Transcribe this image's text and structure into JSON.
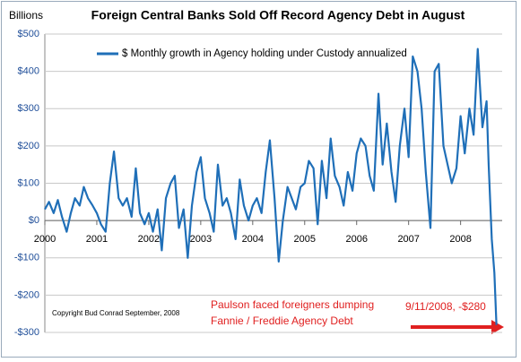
{
  "chart_data": {
    "type": "line",
    "title": "Foreign Central Banks Sold Off  Record Agency Debt in August",
    "y_label": "Billions",
    "x": [
      2000.0,
      2000.08,
      2000.17,
      2000.25,
      2000.33,
      2000.42,
      2000.5,
      2000.58,
      2000.67,
      2000.75,
      2000.83,
      2000.92,
      2001.0,
      2001.08,
      2001.17,
      2001.25,
      2001.33,
      2001.42,
      2001.5,
      2001.58,
      2001.67,
      2001.75,
      2001.83,
      2001.92,
      2002.0,
      2002.08,
      2002.17,
      2002.25,
      2002.33,
      2002.42,
      2002.5,
      2002.58,
      2002.67,
      2002.75,
      2002.83,
      2002.92,
      2003.0,
      2003.08,
      2003.17,
      2003.25,
      2003.33,
      2003.42,
      2003.5,
      2003.58,
      2003.67,
      2003.75,
      2003.83,
      2003.92,
      2004.0,
      2004.08,
      2004.17,
      2004.25,
      2004.33,
      2004.42,
      2004.5,
      2004.58,
      2004.67,
      2004.75,
      2004.83,
      2004.92,
      2005.0,
      2005.08,
      2005.17,
      2005.25,
      2005.33,
      2005.42,
      2005.5,
      2005.58,
      2005.67,
      2005.75,
      2005.83,
      2005.92,
      2006.0,
      2006.08,
      2006.17,
      2006.25,
      2006.33,
      2006.42,
      2006.5,
      2006.58,
      2006.67,
      2006.75,
      2006.83,
      2006.92,
      2007.0,
      2007.08,
      2007.17,
      2007.25,
      2007.33,
      2007.42,
      2007.5,
      2007.58,
      2007.67,
      2007.75,
      2007.83,
      2007.92,
      2008.0,
      2008.08,
      2008.17,
      2008.25,
      2008.33,
      2008.42,
      2008.5,
      2008.54,
      2008.6,
      2008.65,
      2008.69
    ],
    "series": [
      {
        "name": "$ Monthly growth in Agency holding under Custody annualized",
        "color": "#1f6fb8",
        "values": [
          30,
          50,
          20,
          55,
          10,
          -30,
          20,
          60,
          40,
          90,
          60,
          40,
          20,
          -10,
          -30,
          100,
          185,
          60,
          40,
          60,
          10,
          140,
          20,
          -10,
          20,
          -30,
          30,
          -80,
          60,
          100,
          120,
          -20,
          30,
          -100,
          40,
          130,
          170,
          60,
          20,
          -30,
          150,
          40,
          60,
          20,
          -50,
          110,
          40,
          0,
          40,
          60,
          20,
          130,
          215,
          60,
          -110,
          0,
          90,
          60,
          30,
          90,
          100,
          160,
          140,
          -10,
          160,
          60,
          220,
          120,
          90,
          40,
          130,
          80,
          180,
          220,
          200,
          120,
          80,
          340,
          150,
          260,
          130,
          50,
          200,
          300,
          170,
          440,
          400,
          300,
          130,
          -20,
          400,
          420,
          200,
          150,
          100,
          140,
          280,
          180,
          300,
          230,
          460,
          250,
          320,
          150,
          -50,
          -140,
          -280
        ]
      }
    ],
    "xlim": [
      2000,
      2008.8
    ],
    "xticks": [
      2000,
      2001,
      2002,
      2003,
      2004,
      2005,
      2006,
      2007,
      2008
    ],
    "ylim": [
      -300,
      500
    ],
    "yticks": [
      {
        "value": 500,
        "label": "$500"
      },
      {
        "value": 400,
        "label": "$400"
      },
      {
        "value": 300,
        "label": "$300"
      },
      {
        "value": 200,
        "label": "$200"
      },
      {
        "value": 100,
        "label": "$100"
      },
      {
        "value": 0,
        "label": "$0"
      },
      {
        "value": -100,
        "label": "-$100"
      },
      {
        "value": -200,
        "label": "-$200"
      },
      {
        "value": -300,
        "label": "-$300"
      }
    ],
    "grid": true,
    "annotations": [
      "Copyright Bud Conrad September, 2008",
      "Paulson faced foreigners  dumping",
      "Fannie / Freddie Agency Debt",
      "9/11/2008, -$280"
    ]
  }
}
